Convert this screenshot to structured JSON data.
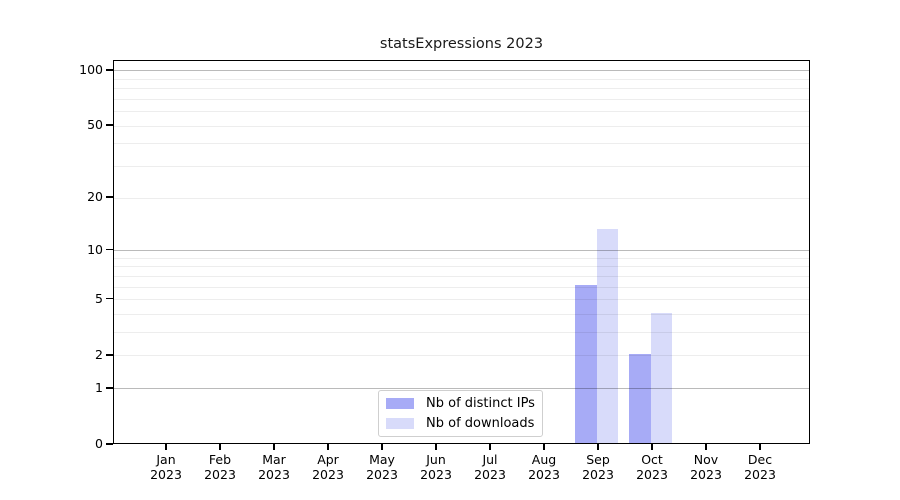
{
  "title": "statsExpressions 2023",
  "chart_data": {
    "type": "bar",
    "title": "statsExpressions 2023",
    "categories": [
      "Jan",
      "Feb",
      "Mar",
      "Apr",
      "May",
      "Jun",
      "Jul",
      "Aug",
      "Sep",
      "Oct",
      "Nov",
      "Dec"
    ],
    "category_year": "2023",
    "series": [
      {
        "name": "Nb of distinct IPs",
        "color": "#A7ABF6",
        "values": [
          0,
          0,
          0,
          0,
          0,
          0,
          0,
          0,
          6,
          2,
          0,
          0
        ]
      },
      {
        "name": "Nb of downloads",
        "color": "#D8DBFA",
        "values": [
          0,
          0,
          0,
          0,
          0,
          0,
          0,
          0,
          13,
          4,
          0,
          0
        ]
      }
    ],
    "y_axis": {
      "scale": "log1p",
      "tick_values": [
        0,
        1,
        2,
        5,
        10,
        20,
        50,
        100
      ],
      "ylim": [
        0,
        113
      ]
    },
    "grid": {
      "grid_on": true,
      "major_lines": [
        1,
        10,
        100
      ],
      "minor_lines": [
        2,
        3,
        4,
        5,
        6,
        7,
        8,
        9,
        20,
        30,
        40,
        50,
        60,
        70,
        80,
        90
      ]
    },
    "legend": {
      "position": "bottom-center",
      "entries": [
        "Nb of distinct IPs",
        "Nb of downloads"
      ]
    },
    "axis_colors": {
      "spine": "#000000",
      "major_grid": "#BABABA",
      "minor_grid": "#EDEDED"
    }
  }
}
